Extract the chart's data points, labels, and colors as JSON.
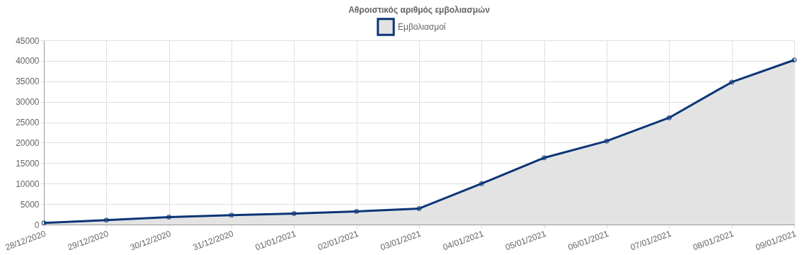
{
  "chart_data": {
    "type": "area",
    "title": "Αθροιστικός αριθμός εμβολιασμών",
    "categories": [
      "28/12/2020",
      "29/12/2020",
      "30/12/2020",
      "31/12/2020",
      "01/01/2021",
      "02/01/2021",
      "03/01/2021",
      "04/01/2021",
      "05/01/2021",
      "06/01/2021",
      "07/01/2021",
      "08/01/2021",
      "09/01/2021"
    ],
    "series": [
      {
        "name": "Εμβολιασμοί",
        "color": "#0b3577",
        "values": [
          400,
          1100,
          1800,
          2300,
          2700,
          3200,
          3900,
          10000,
          16300,
          20400,
          26100,
          34800,
          40200
        ]
      }
    ],
    "ylim": [
      0,
      45000
    ],
    "yticks": [
      0,
      5000,
      10000,
      15000,
      20000,
      25000,
      30000,
      35000,
      40000,
      45000
    ],
    "grid": true,
    "legend": "top",
    "marker": "circle",
    "line_style": "solid"
  }
}
